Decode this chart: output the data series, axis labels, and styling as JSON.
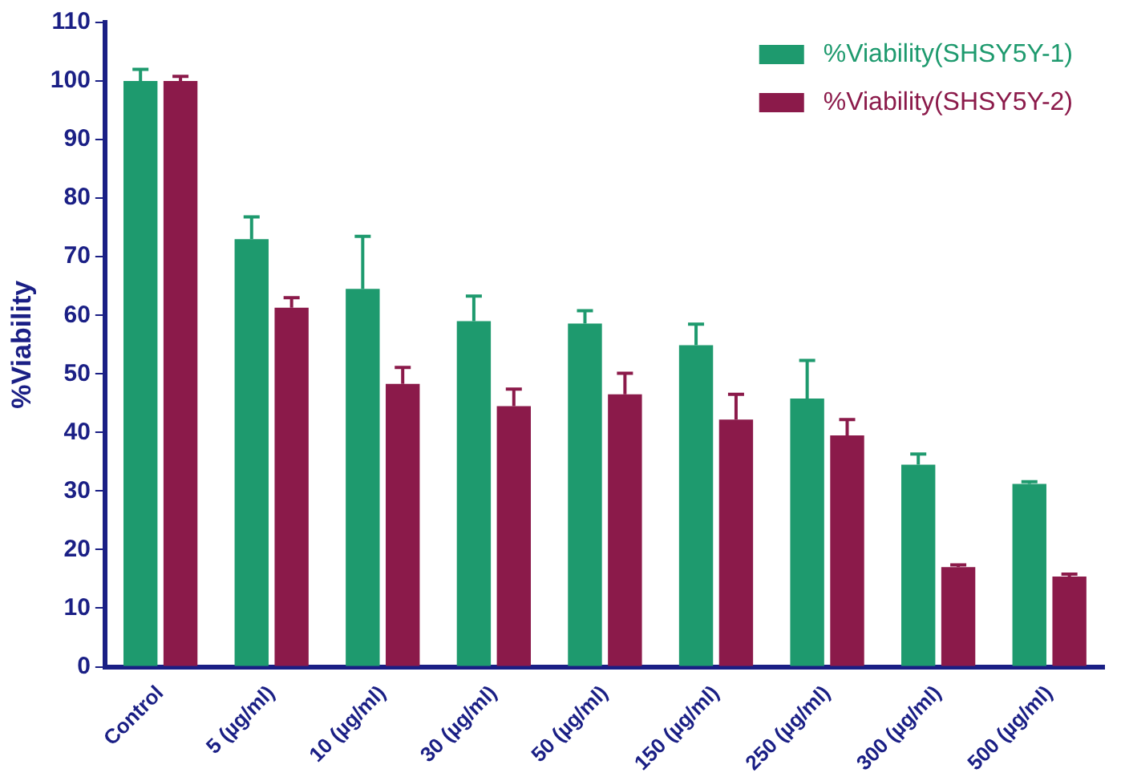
{
  "chart_data": {
    "type": "bar",
    "ylabel": "%Viability",
    "categories": [
      "Control",
      "5 (µg/ml)",
      "10 (µg/ml)",
      "30 (µg/ml)",
      "50 (µg/ml)",
      "150 (µg/ml)",
      "250 (µg/ml)",
      "300 (µg/ml)",
      "500 (µg/ml)"
    ],
    "series": [
      {
        "name": "%Viability(SHSY5Y-1)",
        "color": "#1e9a6e",
        "values": [
          100,
          73,
          64.5,
          59,
          58.6,
          54.9,
          45.8,
          34.5,
          31.2
        ],
        "errors": [
          2,
          3.8,
          9,
          4.3,
          2.2,
          3.6,
          6.5,
          1.8,
          0.4
        ]
      },
      {
        "name": "%Viability(SHSY5Y-2)",
        "color": "#8b1a4a",
        "values": [
          100,
          61.3,
          48.3,
          44.5,
          46.5,
          42.2,
          39.5,
          17,
          15.4
        ],
        "errors": [
          0.8,
          1.7,
          2.8,
          2.9,
          3.6,
          4.3,
          2.7,
          0.4,
          0.4
        ]
      }
    ],
    "ylim": [
      0,
      110
    ],
    "yticks": [
      0,
      10,
      20,
      30,
      40,
      50,
      60,
      70,
      80,
      90,
      100,
      110
    ],
    "grid": false,
    "legend": "top right"
  }
}
